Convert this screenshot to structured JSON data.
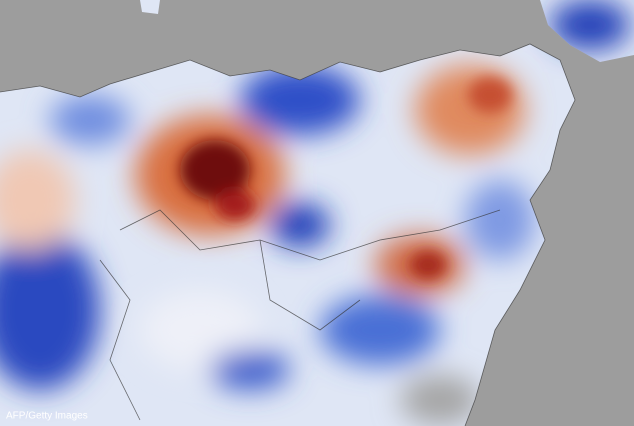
{
  "credit": "AFP/Getty Images"
}
